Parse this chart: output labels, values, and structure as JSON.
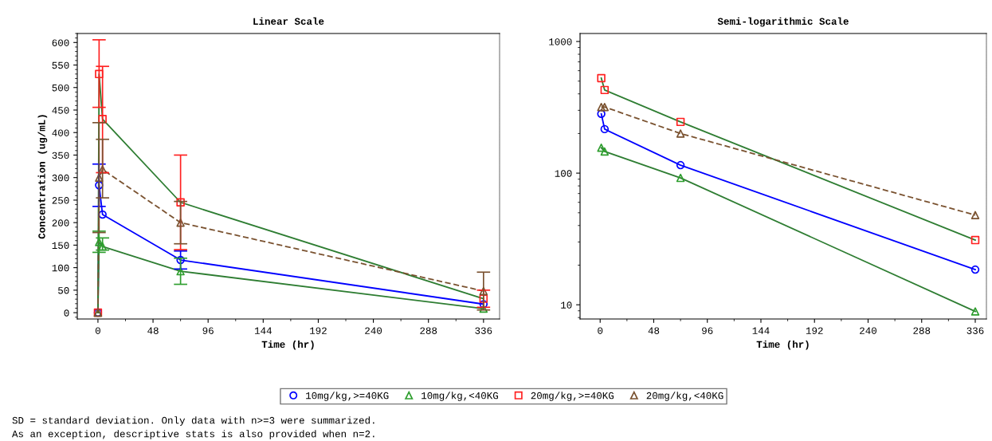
{
  "chart_data": [
    {
      "type": "line",
      "title": "Linear Scale",
      "xlabel": "Time (hr)",
      "ylabel": "Concentration (ug/mL)",
      "x": [
        0,
        1,
        4,
        72,
        336
      ],
      "xlim": [
        -18,
        350
      ],
      "xticks": [
        0,
        48,
        96,
        144,
        192,
        240,
        288,
        336
      ],
      "ylim": [
        -14,
        620
      ],
      "yticks": [
        0,
        50,
        100,
        150,
        200,
        250,
        300,
        350,
        400,
        450,
        500,
        550,
        600
      ],
      "grid": false,
      "legend": "bottom",
      "series": [
        {
          "name": "10mg/kg,>=40KG",
          "color": "#0000ff",
          "colors": [
            "#0000ff",
            "#0000ff",
            "#0000ff",
            "#0000ff",
            "#0000ff"
          ],
          "marker": "circle",
          "line_style": "solid",
          "values": [
            0,
            283,
            218,
            117,
            19
          ],
          "errors": [
            null,
            [
              236,
              330
            ],
            null,
            [
              97,
              137
            ],
            null
          ]
        },
        {
          "name": "10mg/kg,<40KG",
          "color": "#2e7d32",
          "colors": [
            "#2e9e2e",
            "#2e9e2e",
            "#2e9e2e",
            "#2e9e2e",
            "#2e9e2e"
          ],
          "marker": "triangle",
          "line_style": "solid",
          "values": [
            0,
            157,
            147,
            92,
            9
          ],
          "errors": [
            null,
            [
              134,
              181
            ],
            [
              139,
              166
            ],
            [
              63,
              121
            ],
            null
          ]
        },
        {
          "name": "20mg/kg,>=40KG",
          "color": "#2e7d32",
          "colors": [
            "#ff2020",
            "#ff2020",
            "#ff2020",
            "#ff2020",
            "#ff2020"
          ],
          "marker": "square",
          "line_style": "solid",
          "values": [
            0,
            530,
            430,
            245,
            31
          ],
          "errors": [
            null,
            [
              456,
              606
            ],
            [
              311,
              547
            ],
            [
              140,
              350
            ],
            [
              12,
              50
            ]
          ]
        },
        {
          "name": "20mg/kg,<40KG",
          "color": "#7a5230",
          "colors": [
            "#7a5230",
            "#7a5230",
            "#7a5230",
            "#7a5230",
            "#7a5230"
          ],
          "marker": "triangle",
          "line_style": "dashed",
          "values": [
            0,
            300,
            318,
            200,
            48
          ],
          "errors": [
            null,
            [
              178,
              422
            ],
            [
              255,
              385
            ],
            [
              153,
              247
            ],
            [
              6,
              90
            ]
          ]
        }
      ],
      "annotations": [
        "SD = standard deviation. Only data with n>=3 were summarized.",
        "As an exception, descriptive stats is also provided when n=2."
      ]
    },
    {
      "type": "line",
      "title": "Semi-logarithmic Scale",
      "xlabel": "Time (hr)",
      "x": [
        1,
        4,
        72,
        336
      ],
      "xlim": [
        -18,
        346
      ],
      "xticks": [
        0,
        48,
        96,
        144,
        192,
        240,
        288,
        336
      ],
      "log": "y",
      "ylim": [
        7.8,
        1150
      ],
      "yticks": [
        10,
        100,
        1000
      ],
      "grid": false,
      "series": [
        {
          "color": "#0000ff",
          "colors": [
            "#0000ff",
            "#0000ff",
            "#0000ff",
            "#0000ff"
          ],
          "marker": "circle",
          "line_style": "solid",
          "values": [
            282,
            216,
            115,
            18.5
          ]
        },
        {
          "color": "#2e7d32",
          "colors": [
            "#2e9e2e",
            "#2e9e2e",
            "#2e9e2e",
            "#2e9e2e"
          ],
          "marker": "triangle",
          "line_style": "solid",
          "values": [
            156,
            146,
            92,
            8.9
          ]
        },
        {
          "color": "#2e7d32",
          "colors": [
            "#ff2020",
            "#ff2020",
            "#ff2020",
            "#ff2020"
          ],
          "marker": "square",
          "line_style": "solid",
          "values": [
            527,
            428,
            245,
            31
          ]
        },
        {
          "color": "#7a5230",
          "colors": [
            "#7a5230",
            "#7a5230",
            "#7a5230",
            "#7a5230"
          ],
          "marker": "triangle",
          "line_style": "dashed",
          "values": [
            318,
            318,
            200,
            48
          ]
        }
      ]
    }
  ]
}
